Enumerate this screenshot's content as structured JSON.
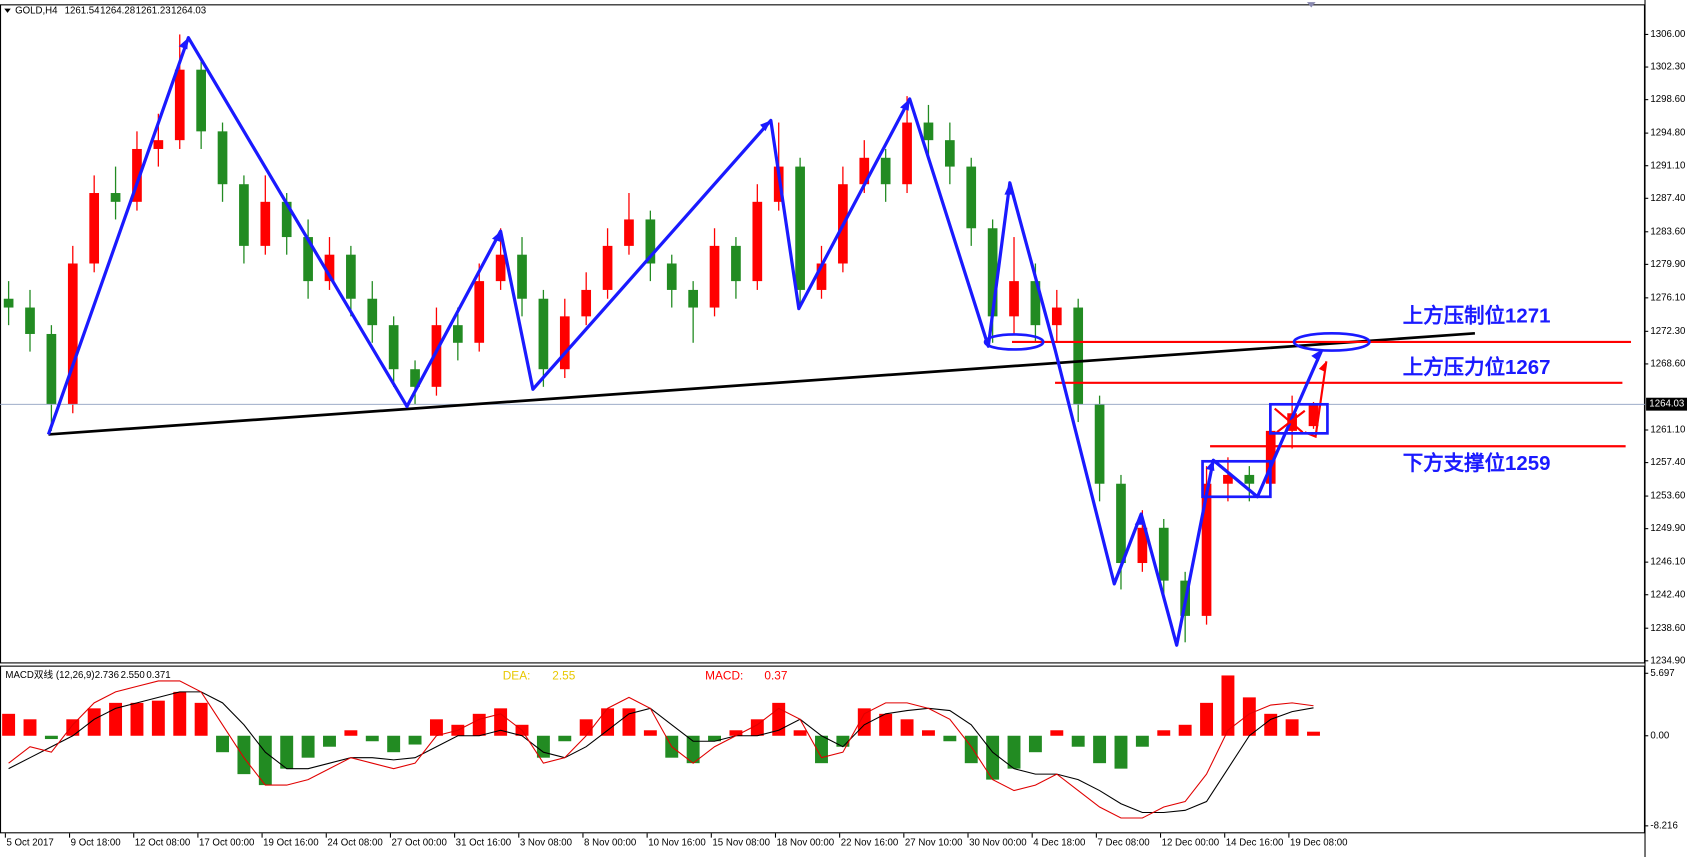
{
  "chart_data": {
    "type": "candlestick",
    "symbol": "GOLD,H4",
    "ohlc_readout": [
      1261.54,
      1264.28,
      1261.23,
      1264.03
    ],
    "x_labels": [
      "5 Oct 2017",
      "9 Oct 18:00",
      "12 Oct 08:00",
      "17 Oct 00:00",
      "19 Oct 16:00",
      "24 Oct 08:00",
      "27 Oct 00:00",
      "31 Oct 16:00",
      "3 Nov 08:00",
      "8 Nov 00:00",
      "10 Nov 16:00",
      "15 Nov 08:00",
      "18 Nov 00:00",
      "22 Nov 16:00",
      "27 Nov 10:00",
      "30 Nov 00:00",
      "4 Dec 18:00",
      "7 Dec 08:00",
      "12 Dec 00:00",
      "14 Dec 16:00",
      "19 Dec 08:00"
    ],
    "candles": {
      "open": [
        1276,
        1275,
        1272,
        1264,
        1280,
        1288,
        1287,
        1293,
        1294,
        1302,
        1295,
        1289,
        1282,
        1287,
        1283,
        1278,
        1281,
        1276,
        1273,
        1268,
        1266,
        1273,
        1271,
        1278,
        1281,
        1276,
        1268,
        1274,
        1277,
        1282,
        1285,
        1280,
        1277,
        1275,
        1282,
        1278,
        1287,
        1291,
        1277,
        1280,
        1289,
        1292,
        1289,
        1296,
        1294,
        1291,
        1284,
        1274,
        1278,
        1273,
        1275,
        1264,
        1255,
        1246,
        1250,
        1244,
        1240,
        1255,
        1256,
        1255,
        1261,
        1261.54
      ],
      "high": [
        1278,
        1277,
        1273,
        1282,
        1290,
        1291,
        1295,
        1297,
        1306,
        1303,
        1296,
        1290,
        1290,
        1288,
        1285,
        1283,
        1282,
        1278,
        1274,
        1269,
        1275,
        1275,
        1280,
        1284,
        1283,
        1277,
        1276,
        1279,
        1284,
        1288,
        1286,
        1281,
        1278,
        1284,
        1283,
        1289,
        1296,
        1292,
        1282,
        1291,
        1294,
        1293,
        1299,
        1298,
        1296,
        1292,
        1285,
        1283,
        1280,
        1277,
        1276,
        1265,
        1256,
        1252,
        1251,
        1245,
        1257,
        1258,
        1257,
        1263,
        1265,
        1264.28
      ],
      "low": [
        1273,
        1270,
        1261,
        1263,
        1279,
        1285,
        1286,
        1291,
        1293,
        1293,
        1287,
        1280,
        1281,
        1281,
        1276,
        1277,
        1274,
        1271,
        1266,
        1264,
        1265,
        1269,
        1270,
        1277,
        1274,
        1266,
        1267,
        1273,
        1276,
        1281,
        1278,
        1275,
        1271,
        1274,
        1276,
        1277,
        1286,
        1275,
        1276,
        1279,
        1288,
        1287,
        1288,
        1292,
        1289,
        1282,
        1271,
        1272,
        1271,
        1271,
        1262,
        1253,
        1243,
        1245,
        1242,
        1237,
        1239,
        1253,
        1253,
        1254,
        1259,
        1261.23
      ],
      "close": [
        1275,
        1272,
        1264,
        1280,
        1288,
        1287,
        1293,
        1294,
        1302,
        1295,
        1289,
        1282,
        1287,
        1283,
        1278,
        1281,
        1276,
        1273,
        1268,
        1266,
        1273,
        1271,
        1278,
        1281,
        1276,
        1268,
        1274,
        1277,
        1282,
        1285,
        1280,
        1277,
        1275,
        1282,
        1278,
        1287,
        1291,
        1277,
        1280,
        1289,
        1292,
        1289,
        1296,
        1294,
        1291,
        1284,
        1274,
        1278,
        1273,
        1275,
        1264,
        1255,
        1246,
        1250,
        1244,
        1240,
        1255,
        1256,
        1255,
        1261,
        1263,
        1264.03
      ]
    },
    "up_color": "#ff0000",
    "down_color": "#228b22",
    "ylim": [
      1234.6,
      1309.3
    ],
    "yticks": [
      {
        "value": 1306,
        "label": "1306.00"
      },
      {
        "value": 1302.3,
        "label": "1302.30"
      },
      {
        "value": 1298.6,
        "label": "1298.60"
      },
      {
        "value": 1294.8,
        "label": "1294.80"
      },
      {
        "value": 1291.1,
        "label": "1291.10"
      },
      {
        "value": 1287.4,
        "label": "1287.40"
      },
      {
        "value": 1283.6,
        "label": "1283.60"
      },
      {
        "value": 1279.9,
        "label": "1279.90"
      },
      {
        "value": 1276.1,
        "label": "1276.10"
      },
      {
        "value": 1272.3,
        "label": "1272.30"
      },
      {
        "value": 1268.6,
        "label": "1268.60"
      },
      {
        "value": 1261.1,
        "label": "1261.10"
      },
      {
        "value": 1257.4,
        "label": "1257.40"
      },
      {
        "value": 1253.6,
        "label": "1253.60"
      },
      {
        "value": 1249.9,
        "label": "1249.90"
      },
      {
        "value": 1246.1,
        "label": "1246.10"
      },
      {
        "value": 1242.4,
        "label": "1242.40"
      },
      {
        "value": 1238.6,
        "label": "1238.60"
      },
      {
        "value": 1234.9,
        "label": "1234.90"
      }
    ],
    "annotations": [
      "上方压制位1271",
      "上方压力位1267",
      "下方支撑位1259"
    ],
    "macd": {
      "title": "MACD双线 (12,26,9)",
      "readout": [
        2.736,
        {
          "value": 2.55,
          "label": "2.550"
        },
        0.371
      ],
      "dea_label": "DEA:",
      "dea_value": 2.55,
      "macd_label": "MACD:",
      "macd_value": 0.37,
      "histogram": [
        2,
        1.5,
        -0.3,
        1.5,
        2.5,
        3,
        3,
        3.2,
        4,
        3,
        -1.5,
        -3.5,
        -4.5,
        -3,
        -2,
        -1,
        0.5,
        -0.5,
        -1.5,
        -0.8,
        1.5,
        1,
        2,
        2.5,
        1,
        -2,
        -0.5,
        1.5,
        2.5,
        2.5,
        0.5,
        -2,
        -2.5,
        -0.5,
        0.5,
        1.5,
        3,
        0.5,
        -2.5,
        -1,
        2.5,
        2,
        1.5,
        0.5,
        -0.5,
        -2.5,
        -4,
        -3,
        -1.5,
        0.5,
        -1,
        -2.5,
        -3,
        -1,
        0.5,
        1,
        3,
        5.5,
        3.5,
        2,
        1.5,
        0.371
      ],
      "signal_line": [
        -3,
        -2,
        -1,
        0,
        1.5,
        2.5,
        3,
        3.5,
        4,
        4,
        3,
        1,
        -1.5,
        -3,
        -3,
        -2.5,
        -2,
        -2,
        -2.2,
        -2,
        -1,
        0,
        0,
        0.5,
        0,
        -1.5,
        -2,
        -1,
        0.5,
        2,
        2.5,
        1,
        -0.5,
        -0.5,
        0,
        0,
        0.5,
        1.5,
        0,
        -1,
        1,
        2,
        2.3,
        2.5,
        2.3,
        1,
        -1.5,
        -3,
        -3.5,
        -3.5,
        -4,
        -5,
        -6.2,
        -7,
        -7,
        -6.8,
        -6,
        -3,
        0,
        1.5,
        2.2,
        2.55
      ],
      "main_line": [
        -2.5,
        -1,
        -1.5,
        1,
        3,
        4,
        4.5,
        5,
        5,
        4,
        1,
        -2,
        -4.5,
        -4.5,
        -4,
        -3,
        -2,
        -2.5,
        -3,
        -2.5,
        0,
        0.5,
        1.5,
        2,
        0.5,
        -2.5,
        -2,
        0,
        2.5,
        3.5,
        2.5,
        -1,
        -2.5,
        -1,
        0,
        1,
        2.5,
        1.5,
        -2,
        -1.5,
        2,
        3,
        3,
        2.5,
        1.5,
        -1,
        -4,
        -5,
        -4.5,
        -3.5,
        -5,
        -6.5,
        -7.5,
        -7.5,
        -6.5,
        -6,
        -3.5,
        0.5,
        2,
        2.8,
        3,
        2.736
      ],
      "ylim": [
        -8.9,
        6.3
      ],
      "yticks": [
        5.697,
        {
          "value": 0,
          "label": "0.00"
        },
        -8.216
      ]
    }
  }
}
